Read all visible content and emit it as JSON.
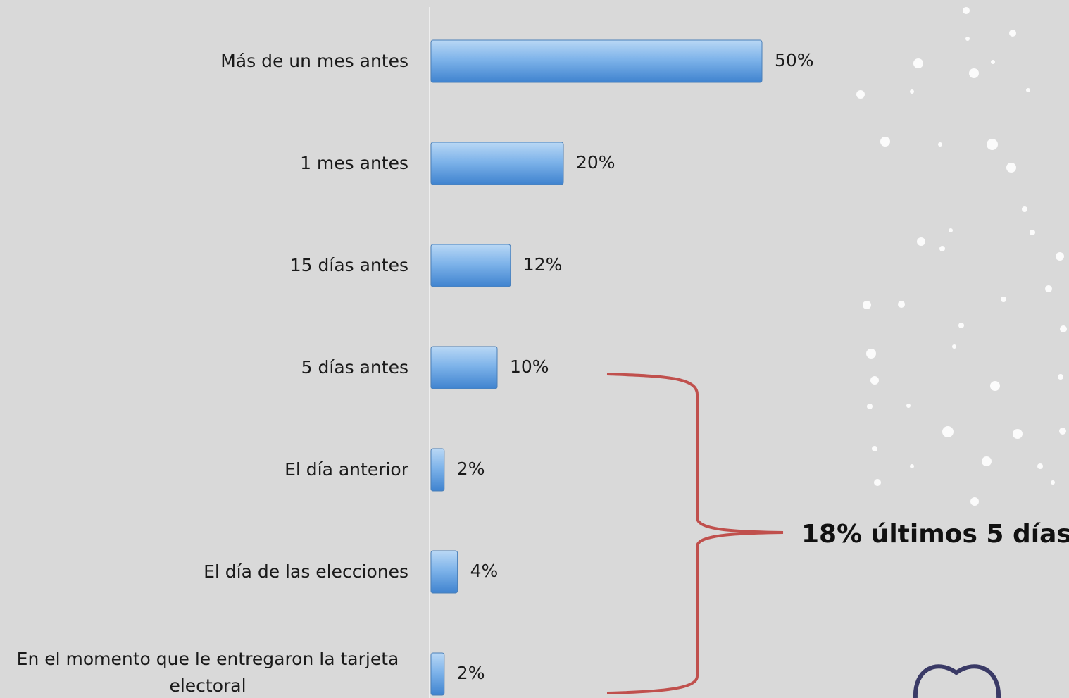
{
  "chart_data": {
    "type": "bar",
    "orientation": "horizontal",
    "categories": [
      "Más de un mes antes",
      "1 mes antes",
      "15 días antes",
      "5 días antes",
      "El día anterior",
      "El día de las elecciones",
      "En el momento que le entregaron la tarjeta electoral"
    ],
    "values": [
      50,
      20,
      12,
      10,
      2,
      4,
      2
    ],
    "value_labels": [
      "50%",
      "20%",
      "12%",
      "10%",
      "2%",
      "4%",
      "2%"
    ],
    "color": "#5b9bdf",
    "annotation": "18% últimos 5 días"
  }
}
